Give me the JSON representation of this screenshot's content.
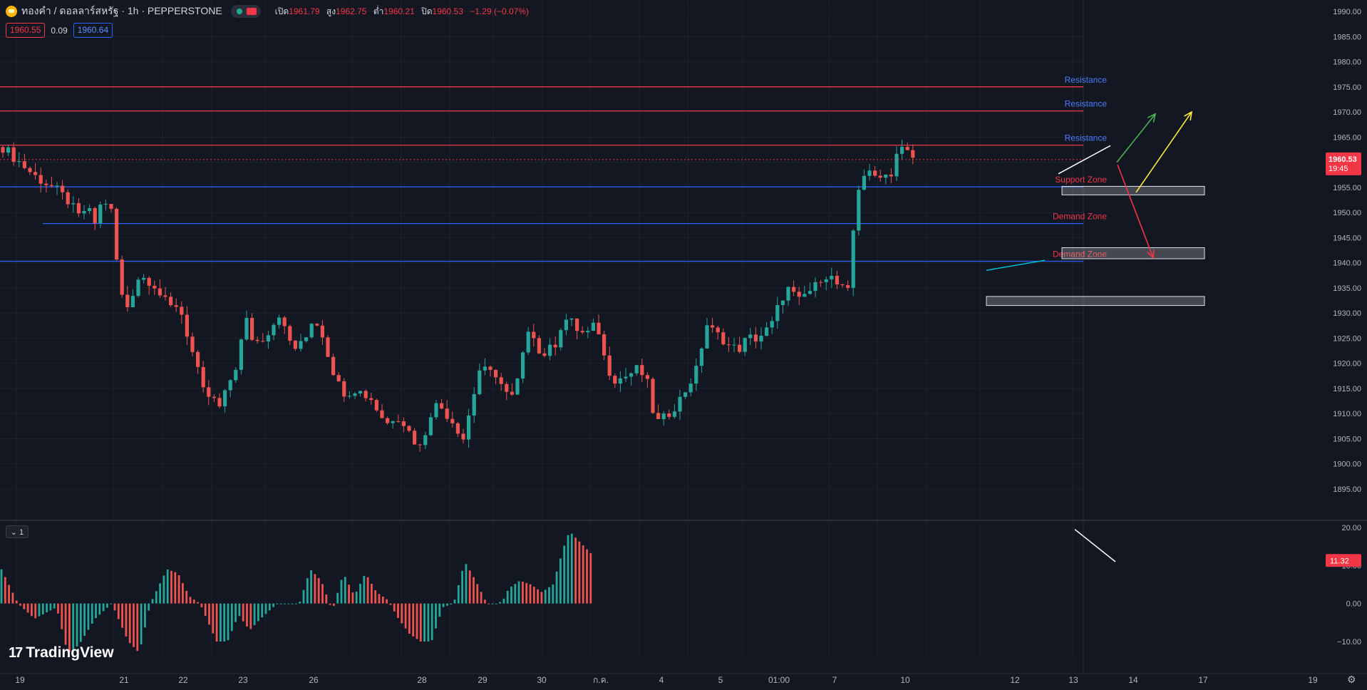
{
  "header": {
    "symbol": "ทองคำ / ดอลลาร์สหรัฐ · 1h · PEPPERSTONE",
    "open_label": "เปิด",
    "open": "1961.79",
    "high_label": "สูง",
    "high": "1962.75",
    "low_label": "ต่ำ",
    "low": "1960.21",
    "close_label": "ปิด",
    "close": "1960.53",
    "change": "−1.29 (−0.07%)"
  },
  "trade": {
    "sell": "1960.55",
    "spread": "0.09",
    "buy": "1960.64"
  },
  "indicator_tag": "⌄ 1",
  "logo": "TradingView",
  "colors": {
    "background": "#131722",
    "up": "#26a69a",
    "down": "#ef5350",
    "resistance": "#f23645",
    "support": "#2962ff",
    "label_blue": "#2962ff",
    "label_red": "#f23645"
  },
  "chart_data": [
    {
      "type": "candlestick",
      "timeframe": "1h",
      "ylim": [
        1894,
        1992
      ],
      "y_ticks": [
        1895,
        1900,
        1905,
        1910,
        1915,
        1920,
        1925,
        1930,
        1935,
        1940,
        1945,
        1950,
        1955,
        1960,
        1965,
        1970,
        1975,
        1980,
        1985,
        1990
      ],
      "x_tick_labels": [
        "19",
        "21",
        "22",
        "23",
        "26",
        "28",
        "29",
        "30",
        "ก.ค.",
        "4",
        "5",
        "01:00",
        "7",
        "10",
        "12",
        "13",
        "14",
        "17",
        "19"
      ],
      "last_price": "1960.53",
      "countdown": "19:45",
      "path": [
        [
          0,
          1963
        ],
        [
          2,
          1960
        ],
        [
          4,
          1957
        ],
        [
          6,
          1955
        ],
        [
          8,
          1952
        ],
        [
          9,
          1949
        ],
        [
          10,
          1951
        ],
        [
          11,
          1948
        ],
        [
          12,
          1953
        ],
        [
          13,
          1950
        ],
        [
          14,
          1934
        ],
        [
          15,
          1931
        ],
        [
          16,
          1937
        ],
        [
          17,
          1937
        ],
        [
          18,
          1936
        ],
        [
          19,
          1933
        ],
        [
          20,
          1931
        ],
        [
          21,
          1932
        ],
        [
          22,
          1926
        ],
        [
          23,
          1920
        ],
        [
          24,
          1914
        ],
        [
          25,
          1913
        ],
        [
          26,
          1911
        ],
        [
          27,
          1916
        ],
        [
          28,
          1920
        ],
        [
          29,
          1929
        ],
        [
          30,
          1924
        ],
        [
          31,
          1925
        ],
        [
          32,
          1927
        ],
        [
          33,
          1930
        ],
        [
          34,
          1925
        ],
        [
          35,
          1923
        ],
        [
          36,
          1924
        ],
        [
          37,
          1929
        ],
        [
          38,
          1927
        ],
        [
          39,
          1921
        ],
        [
          40,
          1916
        ],
        [
          41,
          1914
        ],
        [
          42,
          1915
        ],
        [
          43,
          1914
        ],
        [
          44,
          1913
        ],
        [
          45,
          1910
        ],
        [
          46,
          1908
        ],
        [
          47,
          1910
        ],
        [
          48,
          1908
        ],
        [
          49,
          1905
        ],
        [
          50,
          1903
        ],
        [
          51,
          1910
        ],
        [
          52,
          1912
        ],
        [
          53,
          1910
        ],
        [
          54,
          1908
        ],
        [
          55,
          1905
        ],
        [
          56,
          1912
        ],
        [
          57,
          1919
        ],
        [
          58,
          1918
        ],
        [
          59,
          1918
        ],
        [
          60,
          1914
        ],
        [
          61,
          1913
        ],
        [
          62,
          1920
        ],
        [
          63,
          1929
        ],
        [
          64,
          1922
        ],
        [
          65,
          1922
        ],
        [
          66,
          1924
        ],
        [
          67,
          1929
        ],
        [
          68,
          1928
        ],
        [
          69,
          1926
        ],
        [
          70,
          1926
        ],
        [
          71,
          1928
        ],
        [
          72,
          1920
        ],
        [
          73,
          1917
        ],
        [
          74,
          1917
        ],
        [
          75,
          1918
        ],
        [
          76,
          1919
        ],
        [
          77,
          1916
        ],
        [
          78,
          1908
        ],
        [
          79,
          1909
        ],
        [
          80,
          1911
        ],
        [
          81,
          1913
        ],
        [
          82,
          1916
        ],
        [
          83,
          1919
        ],
        [
          84,
          1928
        ],
        [
          85,
          1926
        ],
        [
          86,
          1925
        ],
        [
          87,
          1923
        ],
        [
          88,
          1923
        ],
        [
          89,
          1925
        ],
        [
          90,
          1925
        ],
        [
          91,
          1926
        ],
        [
          92,
          1928
        ],
        [
          93,
          1933
        ],
        [
          94,
          1935
        ],
        [
          95,
          1932
        ],
        [
          96,
          1934
        ],
        [
          97,
          1935
        ],
        [
          98,
          1938
        ],
        [
          99,
          1937
        ],
        [
          100,
          1935
        ],
        [
          101,
          1934
        ],
        [
          102,
          1954
        ],
        [
          103,
          1958
        ],
        [
          104,
          1957
        ],
        [
          105,
          1958
        ],
        [
          106,
          1957
        ],
        [
          107,
          1963
        ],
        [
          108,
          1962
        ],
        [
          109,
          1960.5
        ]
      ],
      "levels": [
        {
          "price": 1975,
          "label": "Resistance",
          "line": "red",
          "text": "blue"
        },
        {
          "price": 1970.2,
          "label": "Resistance",
          "line": "red",
          "text": "blue"
        },
        {
          "price": 1963.4,
          "label": "Resistance",
          "line": "red",
          "text": "blue"
        },
        {
          "price": 1955.1,
          "label": "Support Zone",
          "line": "blue",
          "text": "red"
        },
        {
          "price": 1947.8,
          "label": "Demand Zone",
          "line": "blue",
          "text": "red"
        },
        {
          "price": 1940.3,
          "label": "Demand Zone",
          "line": "blue",
          "text": "red"
        }
      ],
      "zones": [
        {
          "from_bar": 102,
          "to_bar": 124,
          "low": 1953.5,
          "high": 1955.2
        },
        {
          "from_bar": 102,
          "to_bar": 124,
          "low": 1940.8,
          "high": 1943.0
        },
        {
          "from_bar": 95,
          "to_bar": 124,
          "low": 1931.5,
          "high": 1933.3
        }
      ],
      "annotation_arrows": [
        {
          "color": "green",
          "from": [
            108.5,
            1960
          ],
          "to": [
            113.5,
            1969.6
          ]
        },
        {
          "color": "yellow",
          "from": [
            110.5,
            1954
          ],
          "to": [
            116.5,
            1970
          ]
        },
        {
          "color": "red",
          "from": [
            108.5,
            1959.5
          ],
          "to": [
            112.5,
            1941
          ]
        }
      ],
      "trend_lines": [
        {
          "color": "white",
          "from": [
            102,
            1957.7
          ],
          "to": [
            107.5,
            1963.3
          ]
        },
        {
          "color": "cyan",
          "from": [
            95,
            1938.5
          ],
          "to": [
            100.5,
            1940.5
          ]
        }
      ]
    },
    {
      "type": "histogram",
      "name": "",
      "ylim": [
        -15,
        22
      ],
      "y_ticks": [
        "20.00",
        "10.00",
        "0.00",
        "−10.00"
      ],
      "last_value": "11.32",
      "path": [
        [
          0,
          9
        ],
        [
          3,
          0
        ],
        [
          6,
          -4
        ],
        [
          10,
          -1
        ],
        [
          12,
          -13
        ],
        [
          14,
          -11
        ],
        [
          17,
          -4
        ],
        [
          20,
          0
        ],
        [
          23,
          -10
        ],
        [
          25,
          -13
        ],
        [
          27,
          0
        ],
        [
          30,
          9
        ],
        [
          32,
          8
        ],
        [
          34,
          2
        ],
        [
          36,
          0
        ],
        [
          39,
          -10
        ],
        [
          41,
          -10
        ],
        [
          43,
          -3
        ],
        [
          45,
          -7
        ],
        [
          47,
          -4
        ],
        [
          50,
          0
        ],
        [
          52,
          0
        ],
        [
          54,
          0
        ],
        [
          56,
          9
        ],
        [
          58,
          6
        ],
        [
          60,
          -2
        ],
        [
          62,
          8
        ],
        [
          64,
          2
        ],
        [
          66,
          8
        ],
        [
          68,
          3
        ],
        [
          70,
          1
        ],
        [
          72,
          -4
        ],
        [
          74,
          -8
        ],
        [
          76,
          -10
        ],
        [
          78,
          -10
        ],
        [
          80,
          -1
        ],
        [
          82,
          0
        ],
        [
          84,
          11
        ],
        [
          86,
          6
        ],
        [
          87,
          3
        ],
        [
          88,
          0
        ],
        [
          90,
          0
        ],
        [
          91,
          1
        ],
        [
          92,
          4
        ],
        [
          94,
          6
        ],
        [
          96,
          5
        ],
        [
          98,
          3
        ],
        [
          100,
          5
        ],
        [
          102,
          15
        ],
        [
          103,
          19
        ],
        [
          105,
          16
        ],
        [
          107,
          13
        ]
      ],
      "divergence_line": {
        "color": "white",
        "from": [
          103,
          19.5
        ],
        "to": [
          107.5,
          11
        ]
      }
    }
  ]
}
